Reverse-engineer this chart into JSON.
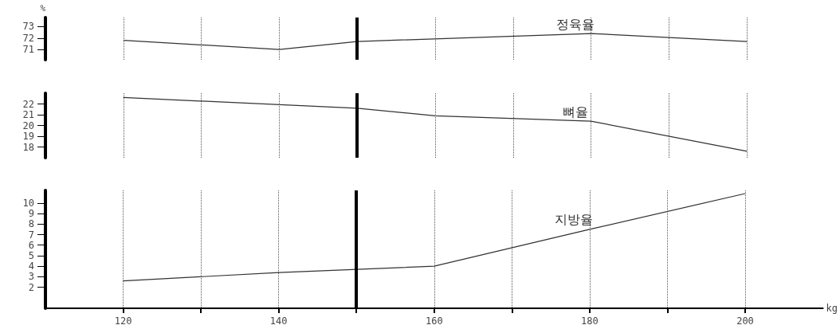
{
  "chart_data": [
    {
      "type": "line",
      "ylabel": "%",
      "xticks": [
        120,
        {
          "value": 130,
          "label": null
        },
        140,
        {
          "value": 150,
          "label": null
        },
        160,
        {
          "value": 170,
          "label": null
        },
        180,
        {
          "value": 190,
          "label": null
        },
        200
      ],
      "ylim": [
        70.1,
        73.8
      ],
      "yticks": [
        71,
        72,
        73
      ],
      "tick_labels": "y",
      "grid": "x",
      "marker": "none",
      "line_style": "solid",
      "ref_lines": [
        {
          "axis": "x",
          "value": 150,
          "color": "#000000"
        }
      ],
      "series": [
        {
          "name": "정육율",
          "color": "#333333",
          "x": [
            120,
            140,
            150,
            180,
            200
          ],
          "values": [
            71.8,
            71.0,
            71.7,
            72.4,
            71.7
          ]
        }
      ]
    },
    {
      "type": "line",
      "xticks": [
        120,
        {
          "value": 130,
          "label": null
        },
        140,
        {
          "value": 150,
          "label": null
        },
        160,
        {
          "value": 170,
          "label": null
        },
        180,
        {
          "value": 190,
          "label": null
        },
        200
      ],
      "ylim": [
        17,
        23
      ],
      "yticks": [
        18,
        19,
        20,
        21,
        22
      ],
      "tick_labels": "y",
      "grid": "x",
      "marker": "none",
      "line_style": "solid",
      "ref_lines": [
        {
          "axis": "x",
          "value": 150,
          "color": "#000000"
        }
      ],
      "series": [
        {
          "name": "뼈율",
          "color": "#333333",
          "x": [
            120,
            150,
            160,
            180,
            200
          ],
          "values": [
            22.6,
            21.6,
            20.9,
            20.4,
            17.6
          ]
        }
      ]
    },
    {
      "type": "line",
      "xlabel": "kg",
      "xlim": [
        110,
        210
      ],
      "xticks": [
        120,
        {
          "value": 130,
          "label": null
        },
        140,
        {
          "value": 150,
          "label": null
        },
        160,
        {
          "value": 170,
          "label": null
        },
        180,
        {
          "value": 190,
          "label": null
        },
        200
      ],
      "ylim": [
        0,
        11.2
      ],
      "yticks": [
        2,
        3,
        4,
        5,
        6,
        7,
        8,
        9,
        10
      ],
      "grid": "x",
      "marker": "none",
      "line_style": "solid",
      "ref_lines": [
        {
          "axis": "x",
          "value": 150,
          "color": "#000000"
        }
      ],
      "series": [
        {
          "name": "지방율",
          "color": "#333333",
          "x": [
            120,
            140,
            160,
            180,
            200
          ],
          "values": [
            2.6,
            3.4,
            4.0,
            7.5,
            10.9
          ]
        }
      ]
    }
  ]
}
